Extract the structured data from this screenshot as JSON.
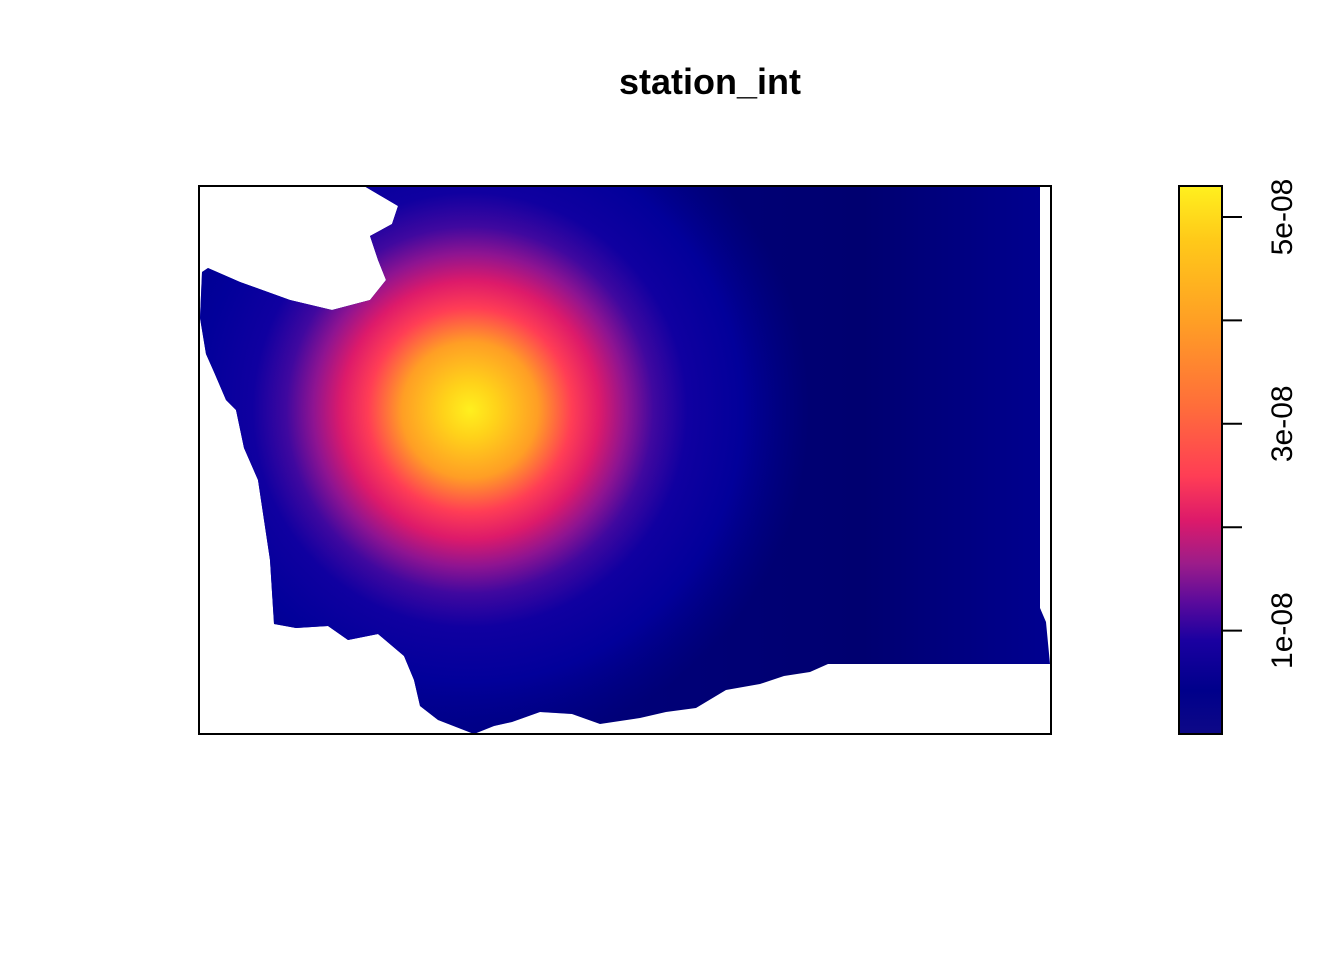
{
  "chart_data": {
    "type": "heatmap",
    "title": "station_int",
    "xlabel": "",
    "ylabel": "",
    "axes_shown": false,
    "region": "Washington State (raster masked to state outline)",
    "hotspot": {
      "value": 5.2e-08,
      "location": "Puget Sound area, western Washington"
    },
    "background_value_min": 0,
    "colorbar": {
      "range": [
        0,
        5.3e-08
      ],
      "ticks": [
        {
          "value": 1e-08,
          "label": "1e-08"
        },
        {
          "value": 2e-08,
          "label": ""
        },
        {
          "value": 3e-08,
          "label": "3e-08"
        },
        {
          "value": 4e-08,
          "label": ""
        },
        {
          "value": 5e-08,
          "label": "5e-08"
        }
      ],
      "palette": [
        "#0d0887",
        "#00008b",
        "#00009c",
        "#5a0a9c",
        "#9b1c8a",
        "#dd1a6a",
        "#ff3d55",
        "#ff6e3a",
        "#ff9e25",
        "#ffc919",
        "#fff01e"
      ]
    }
  }
}
